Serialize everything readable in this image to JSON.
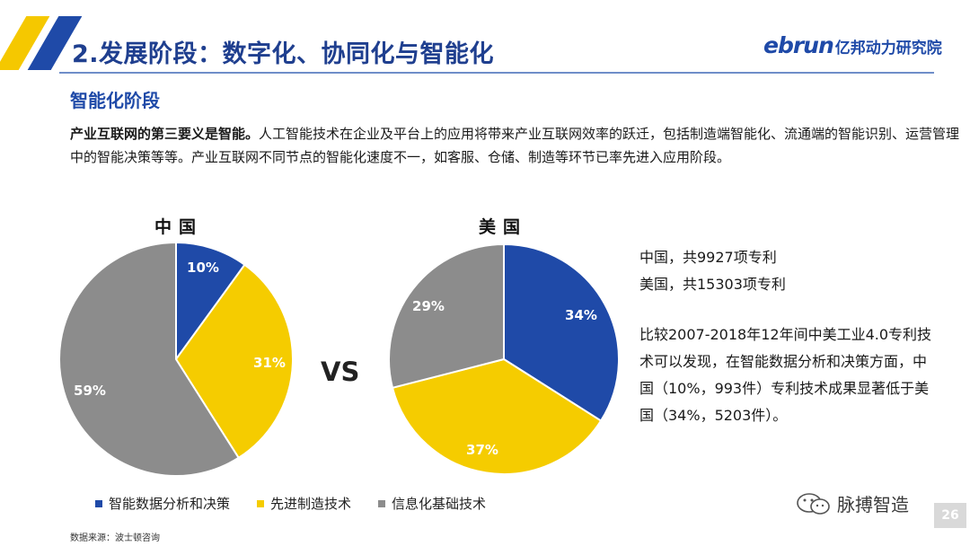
{
  "header": {
    "title": "2.发展阶段：数字化、协同化与智能化",
    "logo_en": "ebrun",
    "logo_cn": "亿邦动力研究院"
  },
  "section_title": "智能化阶段",
  "paragraph": {
    "bold": "产业互联网的第三要义是智能。",
    "body": "人工智能技术在企业及平台上的应用将带来产业互联网效率的跃迁，包括制造端智能化、流通端的智能识别、运营管理中的智能决策等等。产业互联网不同节点的智能化速度不一，如客服、仓储、制造等环节已率先进入应用阶段。"
  },
  "vs_label": "VS",
  "side_text": {
    "line1": "中国，共9927项专利",
    "line2": "美国，共15303项专利",
    "line3": "比较2007-2018年12年间中美工业4.0专利技术可以发现，在智能数据分析和决策方面，中国（10%，993件）专利技术成果显著低于美国（34%，5203件）。"
  },
  "chart_data": [
    {
      "type": "pie",
      "title": "中国",
      "categories": [
        "智能数据分析和决策",
        "先进制造技术",
        "信息化基础技术"
      ],
      "values": [
        10,
        31,
        59
      ],
      "labels": [
        "10%",
        "31%",
        "59%"
      ],
      "colors": [
        "#1f4aa8",
        "#f5cc00",
        "#8c8c8c"
      ]
    },
    {
      "type": "pie",
      "title": "美国",
      "categories": [
        "智能数据分析和决策",
        "先进制造技术",
        "信息化基础技术"
      ],
      "values": [
        34,
        37,
        29
      ],
      "labels": [
        "34%",
        "37%",
        "29%"
      ],
      "colors": [
        "#1f4aa8",
        "#f5cc00",
        "#8c8c8c"
      ]
    }
  ],
  "legend": [
    {
      "label": "智能数据分析和决策",
      "color": "#1f4aa8"
    },
    {
      "label": "先进制造技术",
      "color": "#f5cc00"
    },
    {
      "label": "信息化基础技术",
      "color": "#8c8c8c"
    }
  ],
  "source": "数据来源：波士顿咨询",
  "watermark": "脉搏智造",
  "page_number": "26"
}
